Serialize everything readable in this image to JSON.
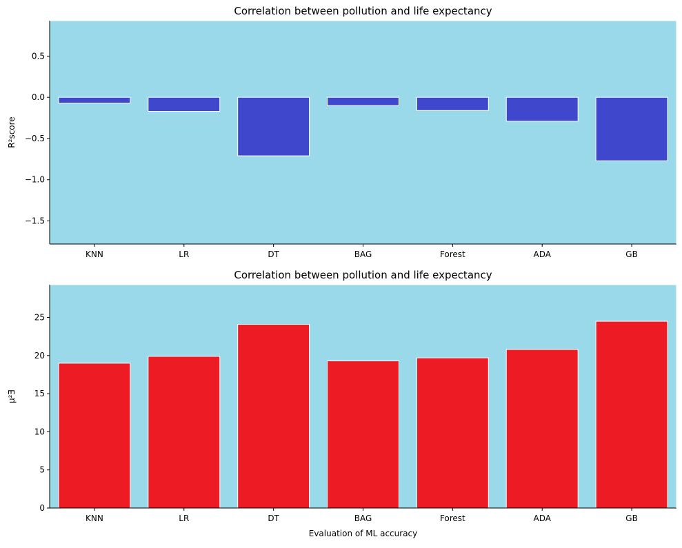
{
  "chart_data": [
    {
      "type": "bar",
      "title": "Correlation between pollution and life expectancy",
      "xlabel": "",
      "ylabel": "R²score",
      "categories": [
        "KNN",
        "LR",
        "DT",
        "BAG",
        "Forest",
        "ADA",
        "GB"
      ],
      "values": [
        -0.07,
        -0.17,
        -0.71,
        -0.1,
        -0.16,
        -0.29,
        -0.77
      ],
      "ylim": [
        -1.78,
        0.93
      ],
      "yticks": [
        -1.5,
        -1.0,
        -0.5,
        0.0,
        0.5
      ],
      "ytick_labels": [
        "−1.5",
        "−1.0",
        "−0.5",
        "0.0",
        "0.5"
      ],
      "bar_color": "#3f48cc",
      "background": "#99d9ea",
      "grid": false
    },
    {
      "type": "bar",
      "title": "Correlation between pollution and life expectancy",
      "xlabel": "Evaluation of ML accuracy",
      "ylabel": "µ²Ǝ",
      "categories": [
        "KNN",
        "LR",
        "DT",
        "BAG",
        "Forest",
        "ADA",
        "GB"
      ],
      "values": [
        19.0,
        19.9,
        24.1,
        19.3,
        19.7,
        20.8,
        24.5
      ],
      "ylim": [
        0,
        29.3
      ],
      "yticks": [
        0,
        5,
        10,
        15,
        20,
        25
      ],
      "ytick_labels": [
        "0",
        "5",
        "10",
        "15",
        "20",
        "25"
      ],
      "bar_color": "#ed1c24",
      "background": "#99d9ea",
      "grid": false
    }
  ]
}
